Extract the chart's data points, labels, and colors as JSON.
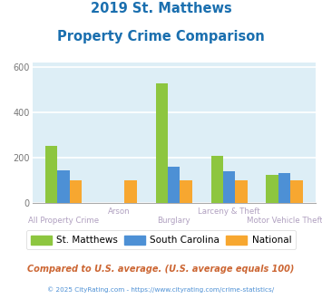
{
  "title_line1": "2019 St. Matthews",
  "title_line2": "Property Crime Comparison",
  "title_color": "#1a6faf",
  "categories": [
    "All Property Crime",
    "Arson",
    "Burglary",
    "Larceny & Theft",
    "Motor Vehicle Theft"
  ],
  "st_matthews": [
    255,
    0,
    530,
    210,
    125
  ],
  "south_carolina": [
    145,
    0,
    163,
    140,
    135
  ],
  "national": [
    100,
    100,
    100,
    100,
    100
  ],
  "colors": {
    "st_matthews": "#8dc63f",
    "south_carolina": "#4d90d5",
    "national": "#f7a730"
  },
  "ylim": [
    0,
    620
  ],
  "yticks": [
    0,
    200,
    400,
    600
  ],
  "plot_bg": "#ddeef6",
  "grid_color": "#ffffff",
  "footnote": "Compared to U.S. average. (U.S. average equals 100)",
  "footnote2": "© 2025 CityRating.com - https://www.cityrating.com/crime-statistics/",
  "legend_labels": [
    "St. Matthews",
    "South Carolina",
    "National"
  ],
  "bar_width": 0.22,
  "label_color_upper": "#b0a0c0",
  "label_color_lower": "#b0a0c0"
}
